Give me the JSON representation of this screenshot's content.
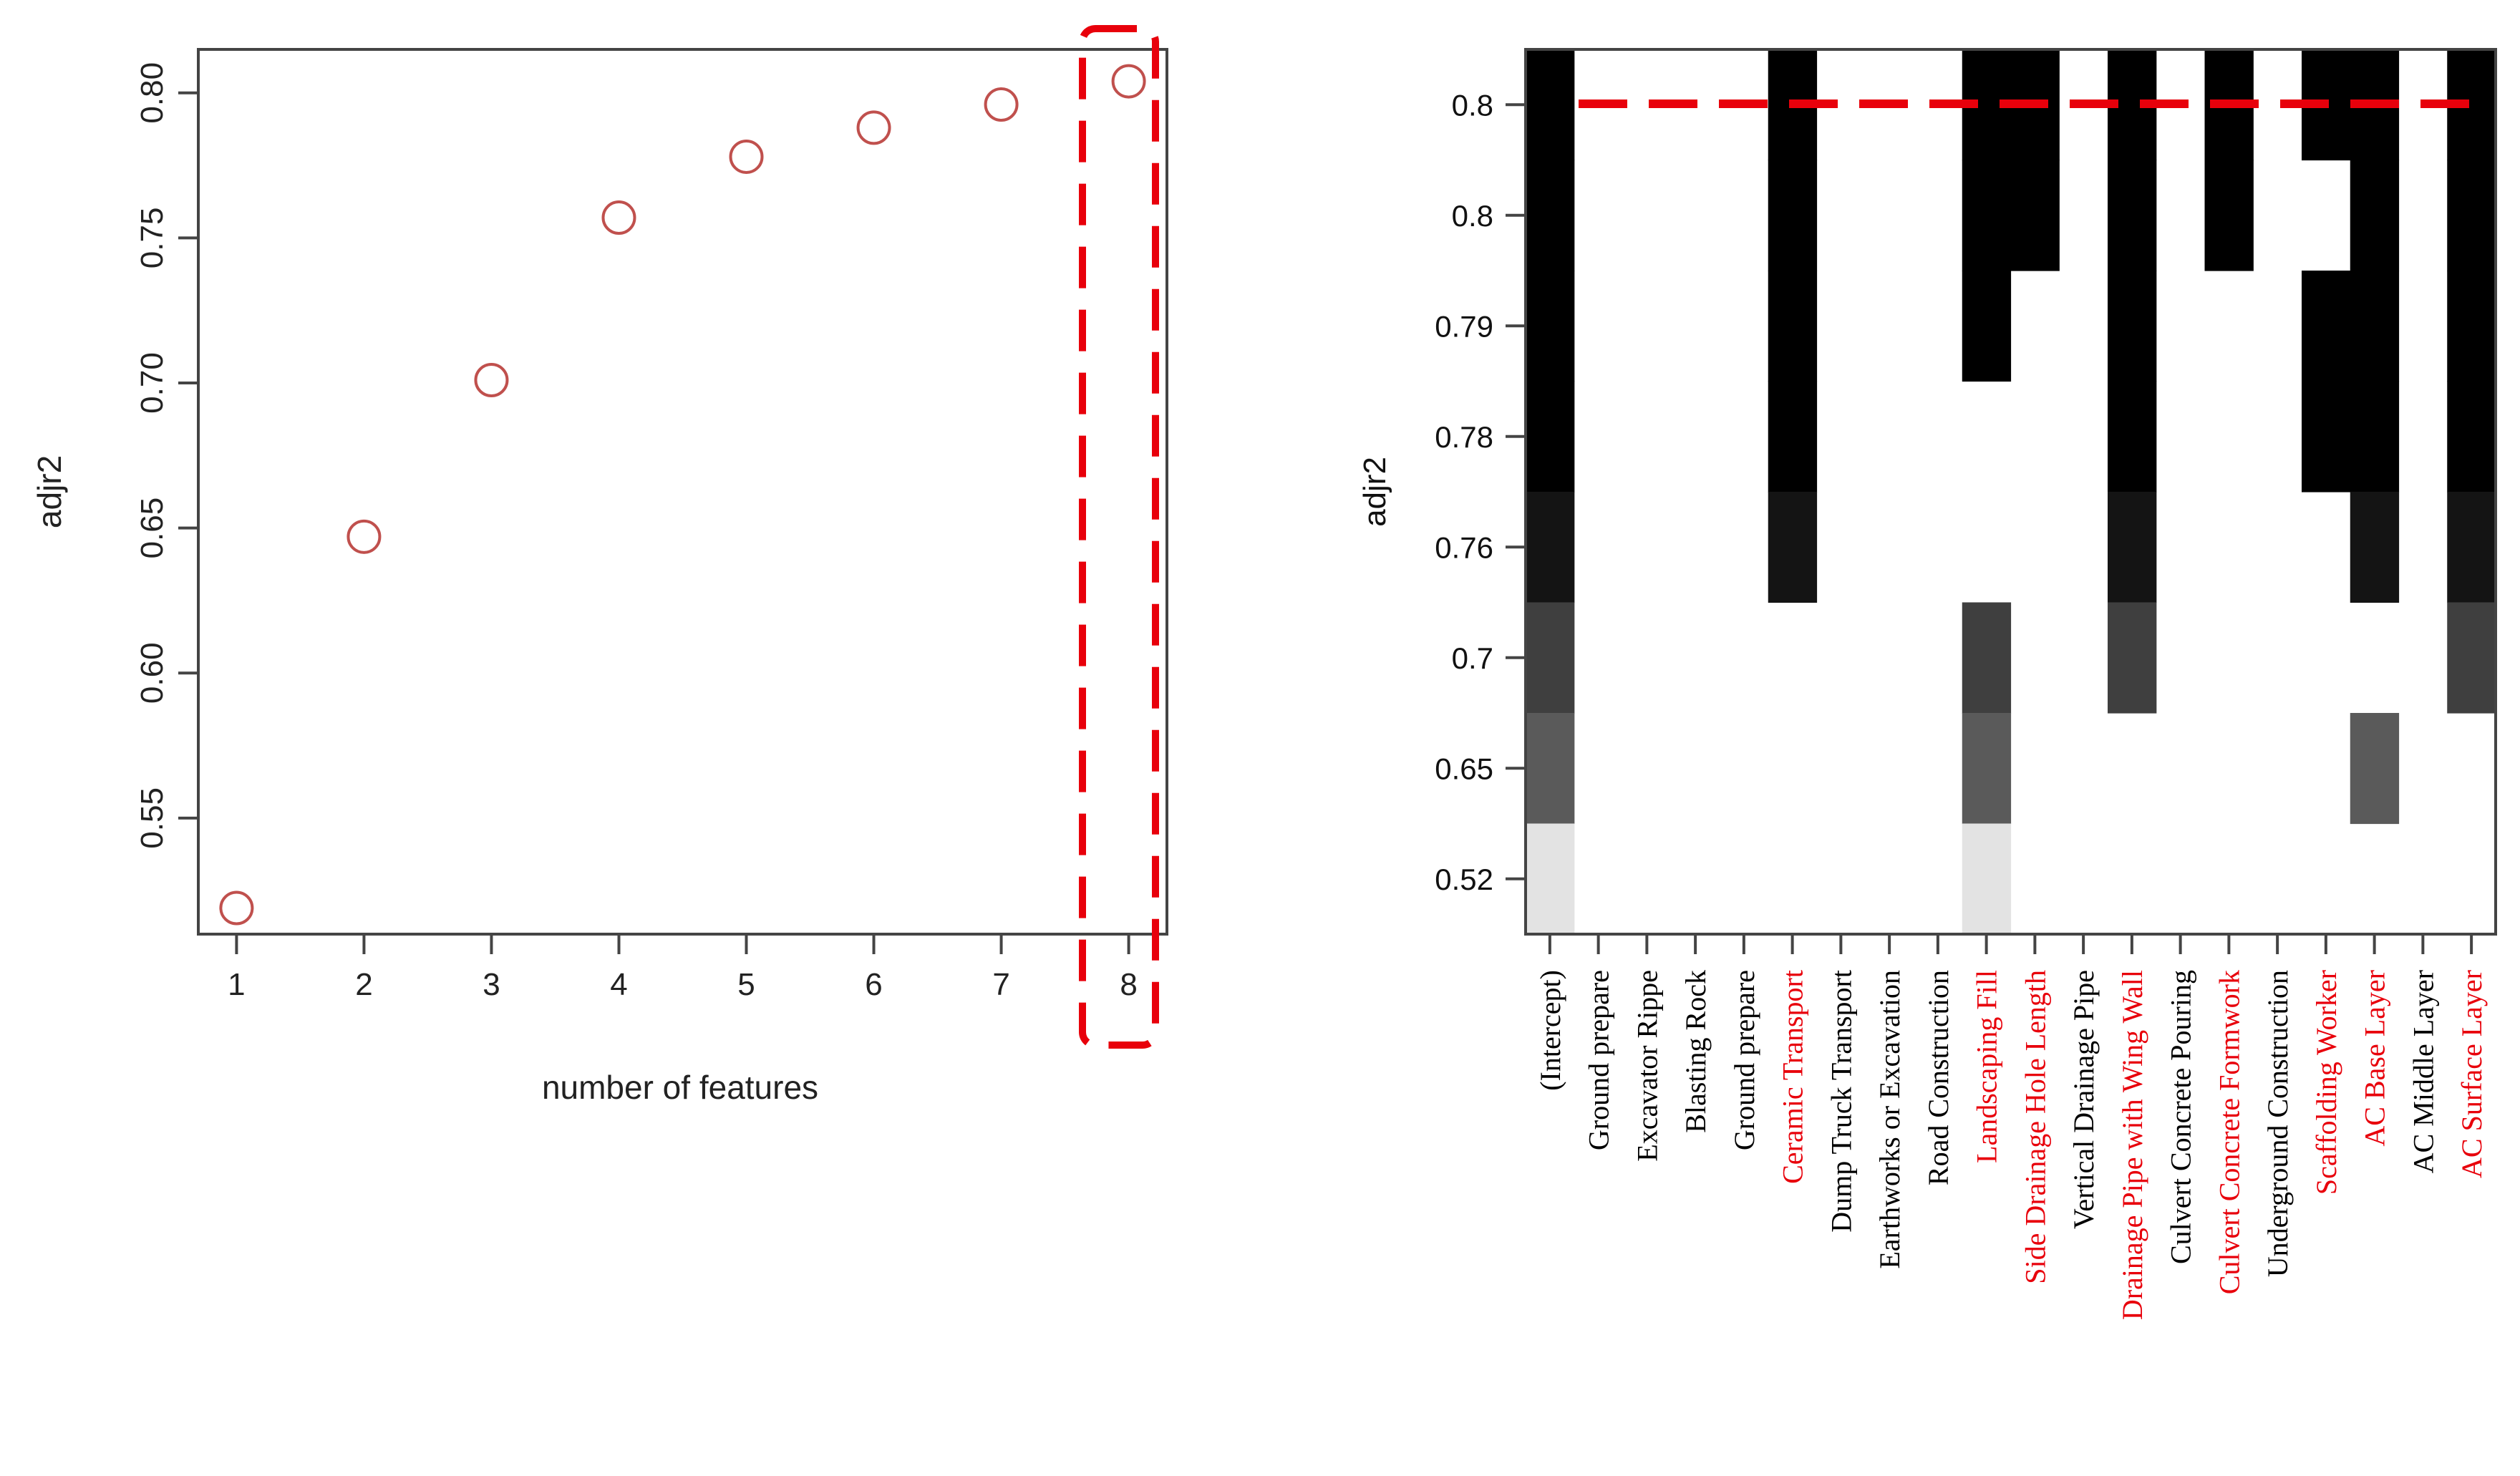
{
  "chart_data": [
    {
      "type": "scatter",
      "title": "",
      "xlabel": "number of features",
      "ylabel": "adjr2",
      "x": [
        1,
        2,
        3,
        4,
        5,
        6,
        7,
        8
      ],
      "y": [
        0.519,
        0.647,
        0.701,
        0.757,
        0.778,
        0.788,
        0.796,
        0.804
      ],
      "xlim": [
        0.7,
        8.3
      ],
      "ylim": [
        0.51,
        0.815
      ],
      "x_ticks": [
        "1",
        "2",
        "3",
        "4",
        "5",
        "6",
        "7",
        "8"
      ],
      "y_ticks": [
        "0.55",
        "0.60",
        "0.65",
        "0.70",
        "0.75",
        "0.80"
      ],
      "y_tick_values": [
        0.55,
        0.6,
        0.65,
        0.7,
        0.75,
        0.8
      ],
      "marker_color": "#c0504d",
      "highlight": {
        "x": 8,
        "style": "dashed-box",
        "color": "#e8000b"
      }
    },
    {
      "type": "heatmap",
      "title": "",
      "xlabel": "",
      "ylabel": "adjr2",
      "y_ticks": [
        "0.8",
        "0.8",
        "0.79",
        "0.78",
        "0.76",
        "0.7",
        "0.65",
        "0.52"
      ],
      "row_order": "top-to-bottom",
      "row_shades": [
        "#000000",
        "#000000",
        "#000000",
        "#000000",
        "#141414",
        "#3f3f3f",
        "#5a5a5a",
        "#e3e3e3"
      ],
      "columns": [
        {
          "label": "(Intercept)",
          "selected": false,
          "rows": [
            1,
            1,
            1,
            1,
            1,
            1,
            1,
            1
          ]
        },
        {
          "label": "Ground prepare",
          "selected": false,
          "rows": [
            0,
            0,
            0,
            0,
            0,
            0,
            0,
            0
          ]
        },
        {
          "label": "Excavator Rippe",
          "selected": false,
          "rows": [
            0,
            0,
            0,
            0,
            0,
            0,
            0,
            0
          ]
        },
        {
          "label": "Blasting Rock",
          "selected": false,
          "rows": [
            0,
            0,
            0,
            0,
            0,
            0,
            0,
            0
          ]
        },
        {
          "label": "Ground prepare",
          "selected": false,
          "rows": [
            0,
            0,
            0,
            0,
            0,
            0,
            0,
            0
          ]
        },
        {
          "label": "Ceramic Transport",
          "selected": true,
          "rows": [
            1,
            1,
            1,
            1,
            1,
            0,
            0,
            0
          ]
        },
        {
          "label": "Dump Truck Transport",
          "selected": false,
          "rows": [
            0,
            0,
            0,
            0,
            0,
            0,
            0,
            0
          ]
        },
        {
          "label": "Earthworks or Excavation",
          "selected": false,
          "rows": [
            0,
            0,
            0,
            0,
            0,
            0,
            0,
            0
          ]
        },
        {
          "label": "Road Construction",
          "selected": false,
          "rows": [
            0,
            0,
            0,
            0,
            0,
            0,
            0,
            0
          ]
        },
        {
          "label": "Landscaping Fill",
          "selected": true,
          "rows": [
            1,
            1,
            1,
            0,
            0,
            1,
            1,
            1
          ]
        },
        {
          "label": "Side Drainage Hole Length",
          "selected": true,
          "rows": [
            1,
            1,
            0,
            0,
            0,
            0,
            0,
            0
          ]
        },
        {
          "label": "Vertical Drainage Pipe",
          "selected": false,
          "rows": [
            0,
            0,
            0,
            0,
            0,
            0,
            0,
            0
          ]
        },
        {
          "label": "Drainage Pipe with Wing Wall",
          "selected": true,
          "rows": [
            1,
            1,
            1,
            1,
            1,
            1,
            0,
            0
          ]
        },
        {
          "label": "Culvert Concrete Pouring",
          "selected": false,
          "rows": [
            0,
            0,
            0,
            0,
            0,
            0,
            0,
            0
          ]
        },
        {
          "label": "Culvert Concrete Formwork",
          "selected": true,
          "rows": [
            1,
            1,
            0,
            0,
            0,
            0,
            0,
            0
          ]
        },
        {
          "label": "Underground Construction",
          "selected": false,
          "rows": [
            0,
            0,
            0,
            0,
            0,
            0,
            0,
            0
          ]
        },
        {
          "label": "Scaffolding Worker",
          "selected": true,
          "rows": [
            1,
            0,
            1,
            1,
            0,
            0,
            0,
            0
          ]
        },
        {
          "label": "AC Base Layer",
          "selected": true,
          "rows": [
            1,
            1,
            1,
            1,
            1,
            0,
            1,
            0
          ]
        },
        {
          "label": "AC Middle Layer",
          "selected": false,
          "rows": [
            0,
            0,
            0,
            0,
            0,
            0,
            0,
            0
          ]
        },
        {
          "label": "AC Surface Layer",
          "selected": true,
          "rows": [
            1,
            1,
            1,
            1,
            1,
            1,
            0,
            0
          ]
        }
      ],
      "threshold": {
        "label_index": 0,
        "style": "dashed",
        "color": "#e8000b"
      },
      "selected_color": "#e8000b",
      "unselected_color": "#000000"
    }
  ]
}
